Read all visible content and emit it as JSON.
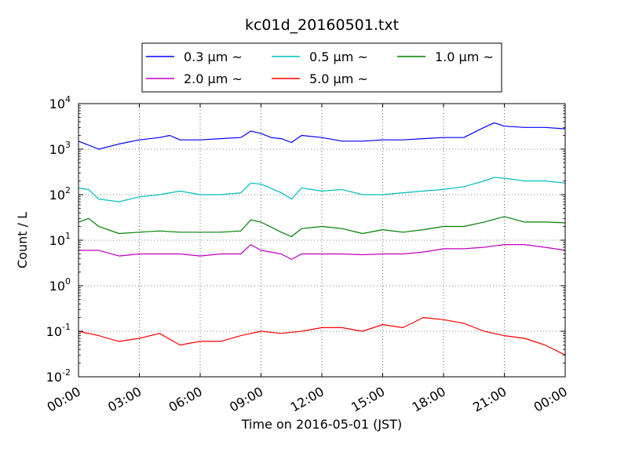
{
  "chart_data": {
    "type": "line",
    "title": "kc01d_20160501.txt",
    "xlabel": "Time on 2016-05-01 (JST)",
    "ylabel": "Count / L",
    "x_ticks": [
      "00:00",
      "03:00",
      "06:00",
      "09:00",
      "12:00",
      "15:00",
      "18:00",
      "21:00",
      "00:00"
    ],
    "xlim_hours": [
      0,
      24
    ],
    "yscale": "log",
    "ylim": [
      0.01,
      10000
    ],
    "y_tick_exponents": [
      "-2",
      "-1",
      "0",
      "1",
      "2",
      "3",
      "4"
    ],
    "y_tick_base": "10",
    "grid": true,
    "legend_placement": "above plot, 3 columns",
    "series": [
      {
        "name": "0.3 μm ~",
        "color": "#0000ff",
        "x": [
          0,
          1,
          2,
          3,
          4,
          4.5,
          5,
          6,
          7,
          8,
          8.5,
          9,
          9.5,
          10,
          10.5,
          11,
          12,
          13,
          14,
          15,
          16,
          17,
          18,
          19,
          20,
          20.5,
          21,
          22,
          23,
          24
        ],
        "y": [
          1500,
          1000,
          1300,
          1600,
          1800,
          2000,
          1600,
          1600,
          1700,
          1800,
          2500,
          2200,
          1800,
          1700,
          1400,
          2000,
          1800,
          1500,
          1500,
          1600,
          1600,
          1700,
          1800,
          1800,
          3000,
          3800,
          3200,
          3000,
          3000,
          2800
        ]
      },
      {
        "name": "0.5 μm ~",
        "color": "#00bfbf",
        "x": [
          0,
          0.5,
          1,
          2,
          3,
          4,
          5,
          6,
          7,
          8,
          8.5,
          9,
          10,
          10.5,
          11,
          12,
          13,
          14,
          15,
          16,
          17,
          18,
          19,
          20,
          20.5,
          21,
          22,
          23,
          24
        ],
        "y": [
          140,
          130,
          80,
          70,
          90,
          100,
          120,
          100,
          100,
          110,
          180,
          170,
          110,
          80,
          140,
          120,
          130,
          100,
          100,
          110,
          120,
          130,
          150,
          200,
          240,
          230,
          200,
          200,
          180
        ]
      },
      {
        "name": "1.0 μm ~",
        "color": "#008000",
        "x": [
          0,
          0.5,
          1,
          2,
          3,
          4,
          5,
          6,
          7,
          8,
          8.5,
          9,
          10,
          10.5,
          11,
          12,
          13,
          14,
          15,
          16,
          17,
          18,
          19,
          20,
          21,
          22,
          23,
          24
        ],
        "y": [
          25,
          30,
          20,
          14,
          15,
          16,
          15,
          15,
          15,
          16,
          28,
          25,
          15,
          12,
          18,
          20,
          18,
          14,
          17,
          15,
          17,
          20,
          20,
          25,
          33,
          25,
          25,
          24
        ]
      },
      {
        "name": "2.0 μm ~",
        "color": "#bf00bf",
        "x": [
          0,
          1,
          2,
          3,
          4,
          5,
          6,
          7,
          8,
          8.5,
          9,
          10,
          10.5,
          11,
          12,
          13,
          14,
          15,
          16,
          17,
          18,
          19,
          20,
          21,
          22,
          23,
          24
        ],
        "y": [
          6,
          6,
          4.5,
          5,
          5,
          5,
          4.5,
          5,
          5,
          8,
          6,
          5,
          3.8,
          5,
          5,
          5,
          4.8,
          5,
          5,
          5.5,
          6.5,
          6.5,
          7,
          8,
          8,
          7,
          6
        ]
      },
      {
        "name": "5.0 μm ~",
        "color": "#ff0000",
        "x": [
          0,
          1,
          2,
          3,
          4,
          5,
          6,
          7,
          8,
          9,
          10,
          11,
          12,
          13,
          14,
          15,
          16,
          17,
          18,
          19,
          20,
          21,
          22,
          23,
          24
        ],
        "y": [
          0.1,
          0.08,
          0.06,
          0.07,
          0.09,
          0.05,
          0.06,
          0.06,
          0.08,
          0.1,
          0.09,
          0.1,
          0.12,
          0.12,
          0.1,
          0.14,
          0.12,
          0.2,
          0.18,
          0.15,
          0.1,
          0.08,
          0.07,
          0.05,
          0.03
        ]
      }
    ]
  }
}
